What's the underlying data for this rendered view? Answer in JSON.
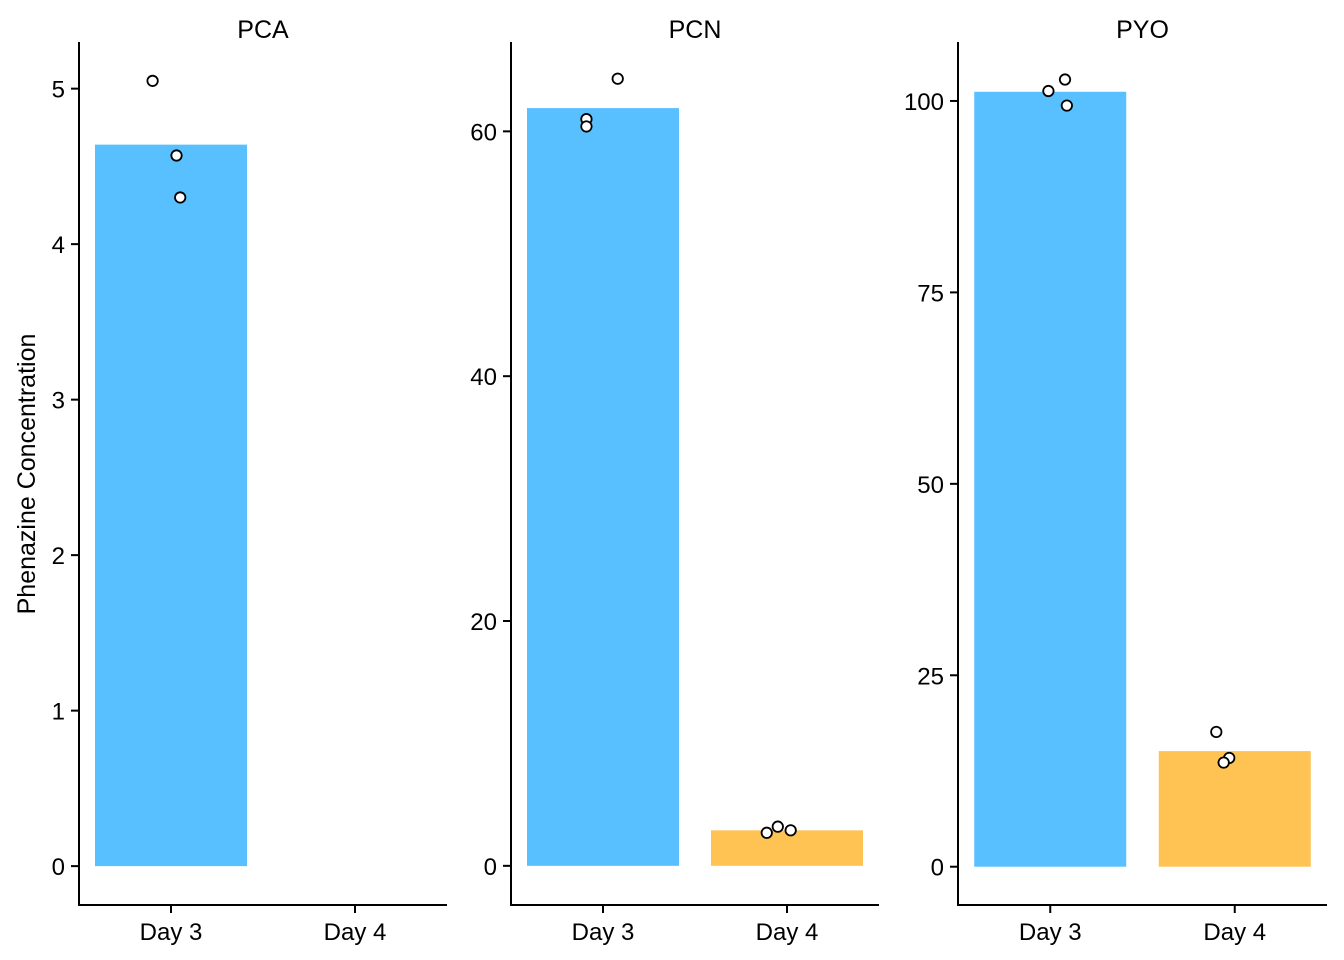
{
  "chart_data": {
    "type": "bar",
    "ylabel": "Phenazine Concentration",
    "xlabel": "",
    "categories": [
      "Day 3",
      "Day 4"
    ],
    "colors": {
      "Day 3": "#59C0FF",
      "Day 4": "#FFC353"
    },
    "grid": false,
    "legend": "none",
    "facets": [
      {
        "title": "PCA",
        "ylim": [
          -0.25,
          5.3
        ],
        "yticks": [
          0,
          1,
          2,
          3,
          4,
          5
        ],
        "bars": [
          {
            "category": "Day 3",
            "value": 4.64
          }
        ],
        "points": [
          {
            "category": "Day 3",
            "value": 5.05,
            "jitter": -0.1
          },
          {
            "category": "Day 3",
            "value": 4.57,
            "jitter": 0.03
          },
          {
            "category": "Day 3",
            "value": 4.3,
            "jitter": 0.05
          }
        ]
      },
      {
        "title": "PCN",
        "ylim": [
          -3.2,
          67.3
        ],
        "yticks": [
          0,
          20,
          40,
          60
        ],
        "bars": [
          {
            "category": "Day 3",
            "value": 61.9
          },
          {
            "category": "Day 4",
            "value": 2.9
          }
        ],
        "points": [
          {
            "category": "Day 3",
            "value": 64.3,
            "jitter": 0.08
          },
          {
            "category": "Day 3",
            "value": 61.0,
            "jitter": -0.09
          },
          {
            "category": "Day 3",
            "value": 60.4,
            "jitter": -0.09
          },
          {
            "category": "Day 4",
            "value": 3.2,
            "jitter": -0.05
          },
          {
            "category": "Day 4",
            "value": 2.9,
            "jitter": 0.02
          },
          {
            "category": "Day 4",
            "value": 2.7,
            "jitter": -0.11
          }
        ]
      },
      {
        "title": "PYO",
        "ylim": [
          -5.0,
          107.7
        ],
        "yticks": [
          0,
          25,
          50,
          75,
          100
        ],
        "bars": [
          {
            "category": "Day 3",
            "value": 101.2
          },
          {
            "category": "Day 4",
            "value": 15.1
          }
        ],
        "points": [
          {
            "category": "Day 3",
            "value": 102.8,
            "jitter": 0.08
          },
          {
            "category": "Day 3",
            "value": 101.3,
            "jitter": -0.01
          },
          {
            "category": "Day 3",
            "value": 99.4,
            "jitter": 0.09
          },
          {
            "category": "Day 4",
            "value": 17.6,
            "jitter": -0.1
          },
          {
            "category": "Day 4",
            "value": 14.2,
            "jitter": -0.03
          },
          {
            "category": "Day 4",
            "value": 13.6,
            "jitter": -0.06
          }
        ]
      }
    ]
  }
}
